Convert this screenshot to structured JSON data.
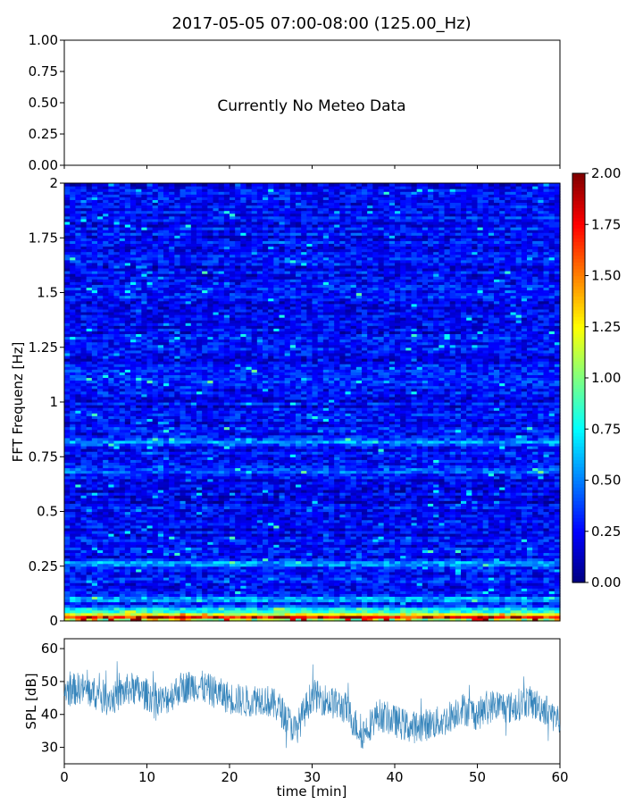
{
  "chart_data": [
    {
      "type": "line",
      "panel": "meteo",
      "title": "2017-05-05 07:00-08:00 (125.00_Hz)",
      "message": "Currently No Meteo Data",
      "ylim": [
        0,
        1
      ],
      "yticks": [
        "0.00",
        "0.25",
        "0.50",
        "0.75",
        "1.00"
      ],
      "series": []
    },
    {
      "type": "heatmap",
      "panel": "spectrogram",
      "ylabel": "FFT Frequenz [Hz]",
      "xlim": [
        0,
        60
      ],
      "ylim": [
        0,
        2
      ],
      "yticks": [
        "0",
        "0.25",
        "0.5",
        "0.75",
        "1",
        "1.25",
        "1.5",
        "1.75",
        "2"
      ],
      "colorbar": {
        "range": [
          0,
          2
        ],
        "ticks": [
          "0.00",
          "0.25",
          "0.50",
          "0.75",
          "1.00",
          "1.25",
          "1.50",
          "1.75",
          "2.00"
        ],
        "colormap": "jet"
      },
      "typical_level": 0.25,
      "features": [
        {
          "freq": 0.02,
          "level": 1.6
        },
        {
          "freq": 0.05,
          "level": 0.9
        },
        {
          "freq": 0.1,
          "level": 0.6
        },
        {
          "freq": 0.26,
          "level": 0.6
        },
        {
          "freq": 0.69,
          "level": 0.55
        },
        {
          "freq": 0.82,
          "level": 0.55
        },
        {
          "freq": 1.1,
          "level": 0.45
        },
        {
          "freq": 1.65,
          "level": 0.45
        }
      ]
    },
    {
      "type": "line",
      "panel": "spl",
      "ylabel": "SPL [dB]",
      "xlabel": "time [min]",
      "xlim": [
        0,
        60
      ],
      "ylim": [
        25,
        63
      ],
      "xticks": [
        "0",
        "10",
        "20",
        "30",
        "40",
        "50",
        "60"
      ],
      "yticks": [
        "30",
        "40",
        "50",
        "60"
      ],
      "color": "#1f77b4",
      "series": [
        {
          "x": [
            0,
            2,
            4,
            6,
            8,
            10,
            12,
            14,
            16,
            18,
            20,
            22,
            24,
            26,
            28,
            30,
            32,
            34,
            36,
            38,
            40,
            42,
            44,
            46,
            48,
            50,
            52,
            54,
            56,
            58,
            60
          ],
          "y": [
            47,
            48,
            46,
            45,
            48,
            46,
            44,
            48,
            49,
            47,
            45,
            44,
            45,
            42,
            35,
            46,
            44,
            42,
            34,
            40,
            38,
            36,
            37,
            38,
            42,
            40,
            43,
            42,
            44,
            42,
            38
          ]
        }
      ]
    }
  ]
}
